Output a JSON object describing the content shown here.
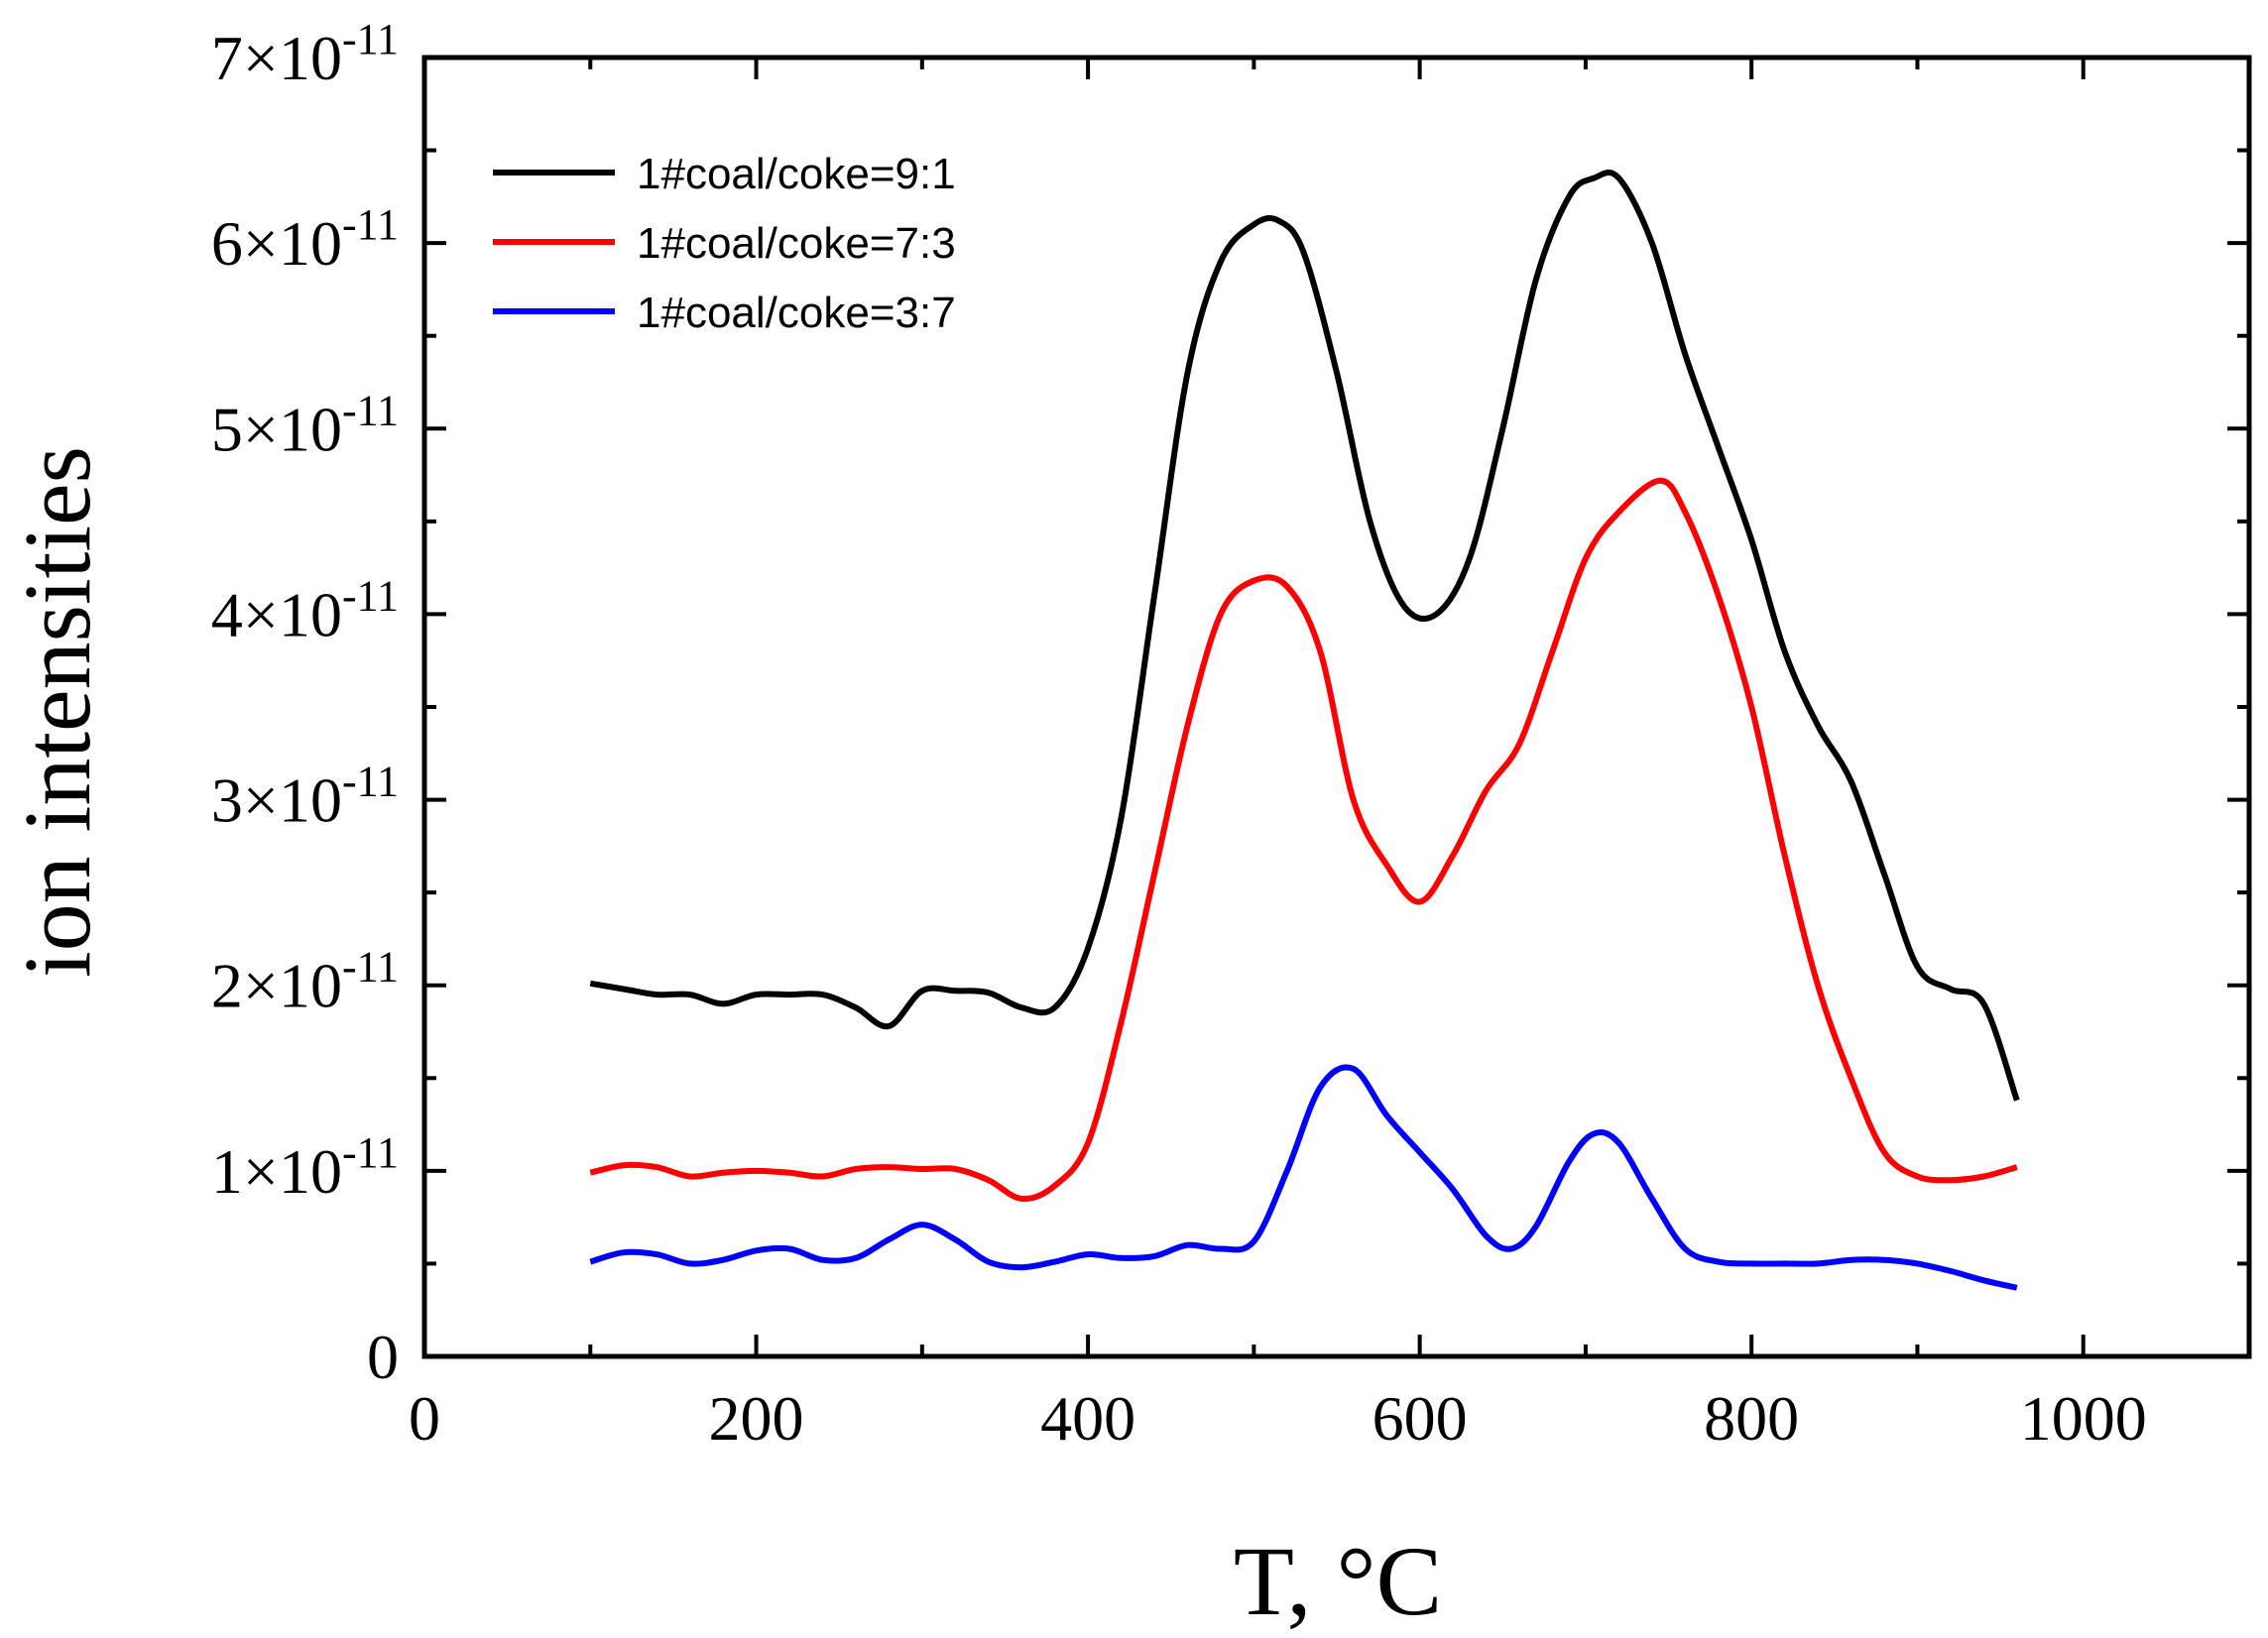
{
  "chart_data": {
    "type": "line",
    "title": "",
    "xlabel": "T, °C",
    "ylabel": "ion intensities",
    "xlim": [
      0,
      1100
    ],
    "ylim": [
      0,
      7e-11
    ],
    "x_ticks": [
      0,
      200,
      400,
      600,
      800,
      1000
    ],
    "x_tick_labels": [
      "0",
      "200",
      "400",
      "600",
      "800",
      "1000"
    ],
    "y_ticks": [
      0,
      1e-11,
      2e-11,
      3e-11,
      4e-11,
      5e-11,
      6e-11,
      7e-11
    ],
    "y_tick_labels": [
      {
        "mantissa": "0",
        "exponent": ""
      },
      {
        "mantissa": "1×10",
        "exponent": "-11"
      },
      {
        "mantissa": "2×10",
        "exponent": "-11"
      },
      {
        "mantissa": "3×10",
        "exponent": "-11"
      },
      {
        "mantissa": "4×10",
        "exponent": "-11"
      },
      {
        "mantissa": "5×10",
        "exponent": "-11"
      },
      {
        "mantissa": "6×10",
        "exponent": "-11"
      },
      {
        "mantissa": "7×10",
        "exponent": "-11"
      }
    ],
    "grid": false,
    "legend_position": "top-left",
    "series": [
      {
        "name": "1#coal/coke=9:1",
        "color": "#000000",
        "x": [
          100,
          120,
          140,
          160,
          180,
          200,
          220,
          240,
          260,
          280,
          300,
          320,
          340,
          360,
          380,
          400,
          420,
          440,
          460,
          480,
          500,
          515,
          530,
          550,
          570,
          590,
          610,
          630,
          650,
          670,
          690,
          705,
          720,
          740,
          760,
          780,
          800,
          820,
          840,
          860,
          880,
          900,
          920,
          940,
          960
        ],
        "y": [
          2.01e-11,
          1.98e-11,
          1.95e-11,
          1.95e-11,
          1.9e-11,
          1.95e-11,
          1.95e-11,
          1.95e-11,
          1.88e-11,
          1.78e-11,
          1.97e-11,
          1.97e-11,
          1.96e-11,
          1.88e-11,
          1.88e-11,
          2.2e-11,
          2.9e-11,
          4.1e-11,
          5.3e-11,
          5.9e-11,
          6.1e-11,
          6.12e-11,
          5.95e-11,
          5.3e-11,
          4.5e-11,
          4.05e-11,
          4e-11,
          4.3e-11,
          5e-11,
          5.8e-11,
          6.25e-11,
          6.35e-11,
          6.35e-11,
          6e-11,
          5.4e-11,
          4.9e-11,
          4.4e-11,
          3.8e-11,
          3.4e-11,
          3.1e-11,
          2.6e-11,
          2.1e-11,
          1.98e-11,
          1.9e-11,
          1.38e-11
        ]
      },
      {
        "name": "1#coal/coke=7:3",
        "color": "#ff0000",
        "x": [
          100,
          120,
          140,
          160,
          180,
          200,
          220,
          240,
          260,
          280,
          300,
          320,
          340,
          360,
          380,
          400,
          420,
          440,
          460,
          480,
          500,
          520,
          540,
          560,
          580,
          600,
          620,
          640,
          660,
          680,
          700,
          720,
          745,
          760,
          780,
          800,
          820,
          840,
          860,
          880,
          900,
          920,
          940,
          960
        ],
        "y": [
          9.9e-12,
          1.03e-11,
          1.02e-11,
          9.7e-12,
          9.9e-12,
          1e-11,
          9.9e-12,
          9.7e-12,
          1.01e-11,
          1.02e-11,
          1.01e-11,
          1.01e-11,
          9.5e-12,
          8.5e-12,
          9.2e-12,
          1.15e-11,
          1.8e-11,
          2.6e-11,
          3.4e-11,
          4e-11,
          4.18e-11,
          4.15e-11,
          3.8e-11,
          3e-11,
          2.65e-11,
          2.45e-11,
          2.7e-11,
          3.05e-11,
          3.3e-11,
          3.8e-11,
          4.3e-11,
          4.55e-11,
          4.72e-11,
          4.55e-11,
          4.1e-11,
          3.5e-11,
          2.7e-11,
          2e-11,
          1.5e-11,
          1.1e-11,
          9.7e-12,
          9.5e-12,
          9.7e-12,
          1.02e-11
        ]
      },
      {
        "name": "1#coal/coke=3:7",
        "color": "#0000ff",
        "x": [
          100,
          120,
          140,
          160,
          180,
          200,
          220,
          240,
          260,
          280,
          300,
          320,
          340,
          360,
          380,
          400,
          420,
          440,
          460,
          480,
          500,
          520,
          540,
          560,
          580,
          600,
          620,
          640,
          655,
          670,
          690,
          705,
          720,
          740,
          760,
          780,
          800,
          820,
          840,
          860,
          880,
          900,
          920,
          940,
          960
        ],
        "y": [
          5.1e-12,
          5.6e-12,
          5.5e-12,
          5e-12,
          5.2e-12,
          5.7e-12,
          5.8e-12,
          5.2e-12,
          5.3e-12,
          6.3e-12,
          7.1e-12,
          6.3e-12,
          5.1e-12,
          4.8e-12,
          5.1e-12,
          5.5e-12,
          5.3e-12,
          5.4e-12,
          6e-12,
          5.8e-12,
          6.2e-12,
          1e-11,
          1.45e-11,
          1.55e-11,
          1.3e-11,
          1.1e-11,
          9e-12,
          6.5e-12,
          5.8e-12,
          7e-12,
          1.05e-11,
          1.2e-11,
          1.15e-11,
          8.5e-12,
          5.8e-12,
          5.1e-12,
          5e-12,
          5e-12,
          5e-12,
          5.2e-12,
          5.2e-12,
          5e-12,
          4.6e-12,
          4.1e-12,
          3.7e-12
        ]
      }
    ]
  }
}
